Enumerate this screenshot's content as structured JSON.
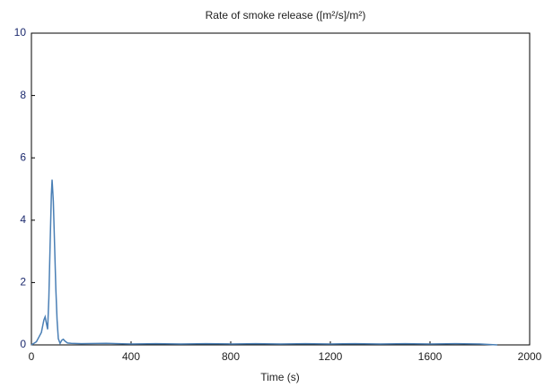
{
  "chart_data": {
    "type": "line",
    "title": "Rate of smoke release  ([m²/s]/m²)",
    "x_label": "Time (s)",
    "xlim": [
      0,
      2000
    ],
    "xticks": [
      0,
      400,
      800,
      1200,
      1600,
      2000
    ],
    "ylim": [
      0,
      10
    ],
    "yticks": [
      0,
      2,
      4,
      6,
      8,
      10
    ],
    "grid": false,
    "series": [
      {
        "name": "Rate of smoke release",
        "color": "#4a7fb5",
        "x": [
          0,
          10,
          20,
          30,
          40,
          45,
          50,
          55,
          60,
          65,
          70,
          75,
          80,
          83,
          88,
          93,
          98,
          103,
          108,
          115,
          122,
          128,
          135,
          145,
          160,
          200,
          300,
          400,
          500,
          600,
          700,
          800,
          900,
          1000,
          1100,
          1200,
          1300,
          1400,
          1500,
          1600,
          1700,
          1800,
          1870
        ],
        "values": [
          0,
          0.05,
          0.1,
          0.25,
          0.4,
          0.6,
          0.8,
          0.9,
          0.7,
          0.5,
          1.5,
          3.2,
          4.8,
          5.3,
          4.6,
          3.2,
          1.8,
          0.8,
          0.2,
          0.05,
          0.15,
          0.18,
          0.12,
          0.06,
          0.05,
          0.04,
          0.05,
          0.03,
          0.04,
          0.03,
          0.04,
          0.03,
          0.04,
          0.03,
          0.04,
          0.03,
          0.04,
          0.03,
          0.04,
          0.03,
          0.04,
          0.03,
          0.0
        ]
      }
    ]
  }
}
